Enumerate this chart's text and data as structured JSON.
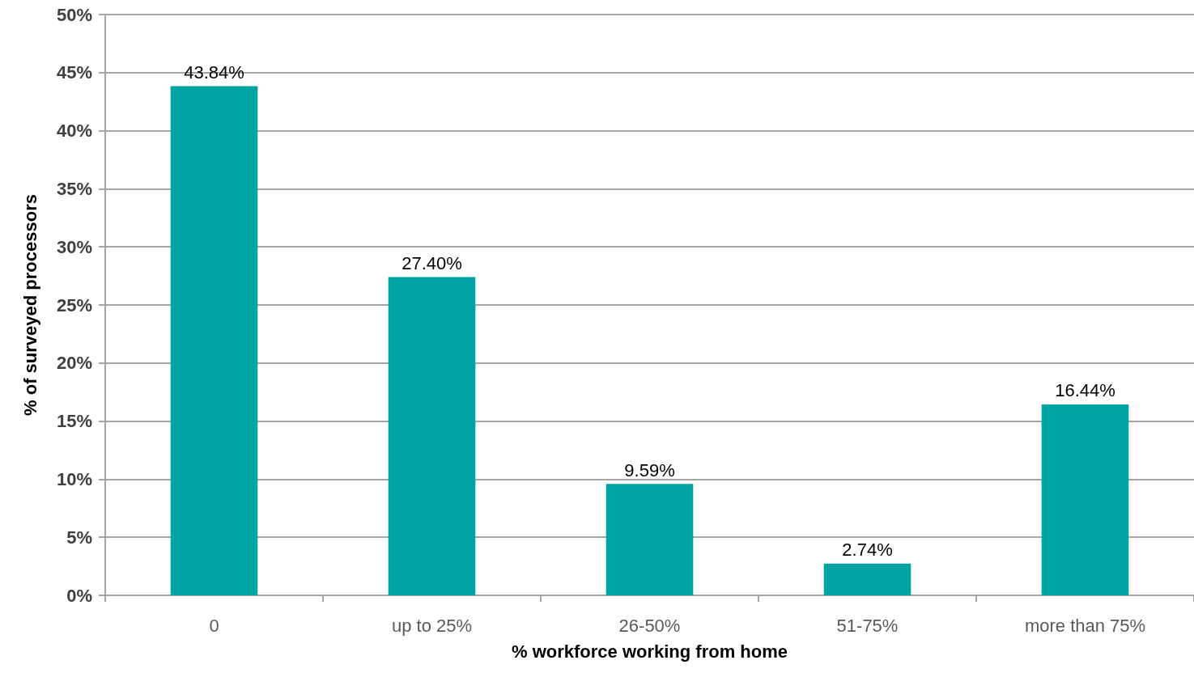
{
  "chart_data": {
    "type": "bar",
    "xlabel": "% workforce working from home",
    "ylabel": "% of surveyed processors",
    "categories": [
      "0",
      "up to 25%",
      "26-50%",
      "51-75%",
      "more than 75%"
    ],
    "values": [
      43.84,
      27.4,
      9.59,
      2.74,
      16.44
    ],
    "value_labels": [
      "43.84%",
      "27.40%",
      "9.59%",
      "2.74%",
      "16.44%"
    ],
    "color": "#00a5a3",
    "ylim": [
      0,
      50
    ],
    "yticks": [
      {
        "value": 0,
        "label": "0%"
      },
      {
        "value": 5,
        "label": "5%"
      },
      {
        "value": 10,
        "label": "10%"
      },
      {
        "value": 15,
        "label": "15%"
      },
      {
        "value": 20,
        "label": "20%"
      },
      {
        "value": 25,
        "label": "25%"
      },
      {
        "value": 30,
        "label": "30%"
      },
      {
        "value": 35,
        "label": "35%"
      },
      {
        "value": 40,
        "label": "40%"
      },
      {
        "value": 45,
        "label": "45%"
      },
      {
        "value": 50,
        "label": "50%"
      }
    ],
    "grid": "y"
  }
}
